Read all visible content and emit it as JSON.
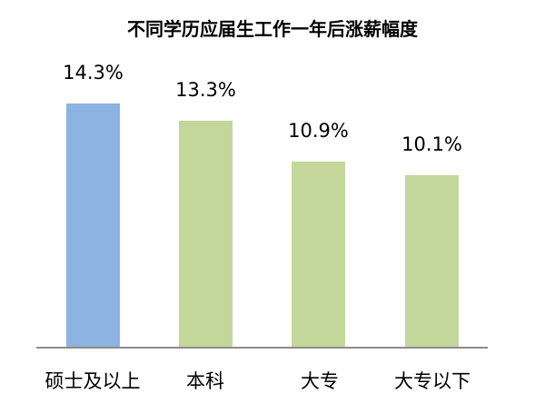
{
  "chart_data": {
    "type": "bar",
    "title": "不同学历应届生工作一年后涨薪幅度",
    "xlabel": "",
    "ylabel": "",
    "categories": [
      "硕士及以上",
      "本科",
      "大专",
      "大专以下"
    ],
    "values": [
      14.3,
      13.3,
      10.9,
      10.1
    ],
    "value_labels": [
      "14.3%",
      "13.3%",
      "10.9%",
      "10.1%"
    ],
    "unit": "%",
    "colors": [
      "#8db3e2",
      "#c4d79b",
      "#c4d79b",
      "#c4d79b"
    ],
    "ylim": [
      0,
      15.2
    ],
    "grid": false,
    "legend": "none",
    "axis_color": "#8c8c8c"
  }
}
